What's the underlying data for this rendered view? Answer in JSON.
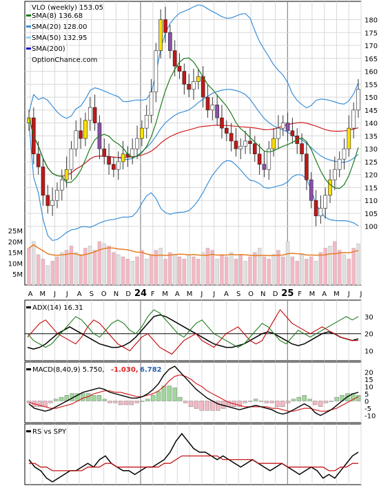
{
  "chart_data": [
    {
      "type": "candlestick",
      "title": "VLO (weekly) 153.05",
      "legend_position": "top-left",
      "site_label": "OptionChance.com",
      "legend": [
        {
          "label": "SMA(8) 136.68",
          "color": "#1a7a1a"
        },
        {
          "label": "SMA(20) 128.00",
          "color": "#3a8fd8"
        },
        {
          "label": "SMA(50) 132.95",
          "color": "#9fd4f0"
        },
        {
          "label": "SMA(200)",
          "color": "#1010d0"
        }
      ],
      "ylim": [
        97,
        186
      ],
      "y_ticks": [
        100,
        105,
        110,
        115,
        120,
        125,
        130,
        135,
        140,
        145,
        150,
        155,
        160,
        165,
        170,
        175,
        180
      ],
      "closes": [
        142,
        128,
        123,
        112,
        108,
        110,
        114,
        118,
        122,
        130,
        137,
        134,
        141,
        146,
        140,
        130,
        127,
        124,
        122,
        125,
        128,
        127,
        130,
        134,
        138,
        143,
        152,
        168,
        180,
        175,
        168,
        162,
        160,
        155,
        153,
        156,
        158,
        150,
        145,
        147,
        142,
        138,
        136,
        133,
        130,
        131,
        133,
        132,
        128,
        124,
        122,
        130,
        134,
        138,
        140,
        137,
        135,
        132,
        128,
        118,
        110,
        104,
        107,
        112,
        118,
        122,
        126,
        130,
        138,
        145,
        153
      ],
      "sma8_end": 136.68,
      "sma20_end": 128.0,
      "sma50_end": 132.95,
      "grid": true
    },
    {
      "type": "bar",
      "title": "Volume",
      "y_ticks": [
        "25M",
        "20M",
        "15M",
        "10M",
        "5M"
      ],
      "ylim": [
        0,
        26
      ],
      "values": [
        17,
        20,
        14,
        12,
        9,
        11,
        13,
        15,
        16,
        18,
        15,
        14,
        17,
        18,
        16,
        20,
        19,
        18,
        15,
        14,
        13,
        12,
        11,
        13,
        16,
        12,
        14,
        16,
        17,
        12,
        15,
        14,
        13,
        12,
        14,
        13,
        12,
        15,
        17,
        16,
        12,
        14,
        13,
        15,
        12,
        14,
        11,
        13,
        15,
        17,
        13,
        12,
        14,
        16,
        13,
        20,
        13,
        11,
        14,
        12,
        13,
        11,
        15,
        17,
        18,
        20,
        16,
        14,
        12,
        17,
        19
      ]
    },
    {
      "type": "line",
      "title": "ADX(14) 16.31",
      "ylim": [
        5,
        38
      ],
      "y_ticks": [
        30,
        20,
        10
      ],
      "reference_line": 20,
      "series": [
        {
          "color": "#000000",
          "values": [
            12,
            11,
            12,
            14,
            17,
            20,
            22,
            24,
            22,
            20,
            18,
            16,
            14,
            13,
            12,
            12,
            13,
            15,
            18,
            22,
            26,
            30,
            31,
            30,
            28,
            26,
            24,
            22,
            20,
            18,
            16,
            14,
            13,
            12,
            12,
            13,
            14,
            16,
            18,
            20,
            21,
            20,
            18,
            16,
            14,
            13,
            14,
            16,
            18,
            20,
            21,
            20,
            18,
            17,
            16,
            17
          ]
        },
        {
          "color": "#c00000",
          "values": [
            18,
            22,
            26,
            28,
            24,
            20,
            18,
            16,
            14,
            18,
            24,
            28,
            26,
            22,
            18,
            14,
            12,
            10,
            14,
            18,
            20,
            16,
            12,
            10,
            8,
            12,
            16,
            18,
            20,
            16,
            14,
            12,
            16,
            20,
            22,
            24,
            20,
            16,
            14,
            16,
            22,
            28,
            34,
            30,
            26,
            24,
            22,
            20,
            22,
            24,
            22,
            20,
            18,
            17,
            16,
            16
          ]
        },
        {
          "color": "#1a7a1a",
          "values": [
            20,
            16,
            14,
            12,
            14,
            18,
            22,
            26,
            30,
            28,
            24,
            20,
            18,
            22,
            26,
            28,
            26,
            22,
            20,
            24,
            30,
            34,
            32,
            28,
            24,
            20,
            18,
            22,
            26,
            28,
            24,
            20,
            18,
            16,
            14,
            12,
            14,
            18,
            22,
            26,
            24,
            20,
            16,
            14,
            18,
            22,
            20,
            18,
            20,
            22,
            24,
            26,
            28,
            30,
            28,
            30
          ]
        }
      ]
    },
    {
      "type": "histogram",
      "title": "MACD(8,40,9) 5.750,",
      "value2": "-1.030,",
      "value3": "6.782",
      "ylim": [
        -14,
        24
      ],
      "y_ticks": [
        20,
        15,
        10,
        5,
        0,
        -5,
        -10
      ],
      "macd": [
        -2,
        -5,
        -6,
        -7,
        -6,
        -4,
        -2,
        0,
        2,
        4,
        6,
        7,
        8,
        9,
        8,
        6,
        5,
        4,
        3,
        2,
        2,
        3,
        5,
        8,
        12,
        18,
        22,
        24,
        20,
        16,
        12,
        8,
        5,
        2,
        0,
        -2,
        -3,
        -4,
        -5,
        -6,
        -5,
        -4,
        -3,
        -4,
        -5,
        -6,
        -8,
        -9,
        -8,
        -6,
        -4,
        -2,
        -4,
        -8,
        -10,
        -8,
        -6,
        -3,
        0,
        3,
        5,
        6
      ],
      "signal": [
        -1,
        -2,
        -3,
        -4,
        -5,
        -5,
        -4,
        -3,
        -2,
        0,
        2,
        3,
        5,
        6,
        7,
        7,
        6,
        6,
        5,
        4,
        3,
        3,
        4,
        5,
        7,
        10,
        14,
        17,
        18,
        17,
        15,
        12,
        10,
        7,
        5,
        3,
        1,
        -1,
        -2,
        -3,
        -4,
        -4,
        -4,
        -4,
        -4,
        -5,
        -5,
        -6,
        -7,
        -7,
        -6,
        -5,
        -5,
        -6,
        -7,
        -7,
        -6,
        -5,
        -3,
        -1,
        1,
        3
      ]
    },
    {
      "type": "line",
      "title": "RS vs SPY",
      "series": [
        {
          "color": "#000000",
          "values": [
            6,
            4,
            3,
            1,
            0,
            1,
            2,
            3,
            3,
            4,
            5,
            4,
            6,
            7,
            5,
            4,
            3,
            3,
            2,
            3,
            4,
            4,
            5,
            6,
            8,
            11,
            13,
            11,
            9,
            8,
            8,
            7,
            6,
            7,
            6,
            5,
            4,
            5,
            6,
            5,
            4,
            3,
            4,
            5,
            4,
            3,
            2,
            3,
            4,
            3,
            1,
            2,
            1,
            3,
            5,
            7,
            8
          ]
        },
        {
          "color": "#c00000",
          "values": [
            5,
            5,
            4,
            4,
            3,
            3,
            3,
            3,
            3,
            3,
            4,
            4,
            4,
            5,
            5,
            4,
            4,
            4,
            4,
            4,
            4,
            4,
            4,
            5,
            5,
            6,
            7,
            7,
            7,
            7,
            7,
            7,
            7,
            6,
            6,
            6,
            6,
            6,
            6,
            5,
            5,
            5,
            5,
            5,
            4,
            4,
            4,
            4,
            4,
            4,
            4,
            3,
            3,
            4,
            4,
            5,
            5
          ]
        }
      ]
    }
  ],
  "x_axis": {
    "labels": [
      "A",
      "M",
      "J",
      "J",
      "A",
      "S",
      "O",
      "N",
      "D",
      "24",
      "F",
      "M",
      "A",
      "M",
      "J",
      "J",
      "A",
      "S",
      "O",
      "N",
      "D",
      "25",
      "F",
      "M",
      "A",
      "M",
      "J",
      "J"
    ]
  }
}
